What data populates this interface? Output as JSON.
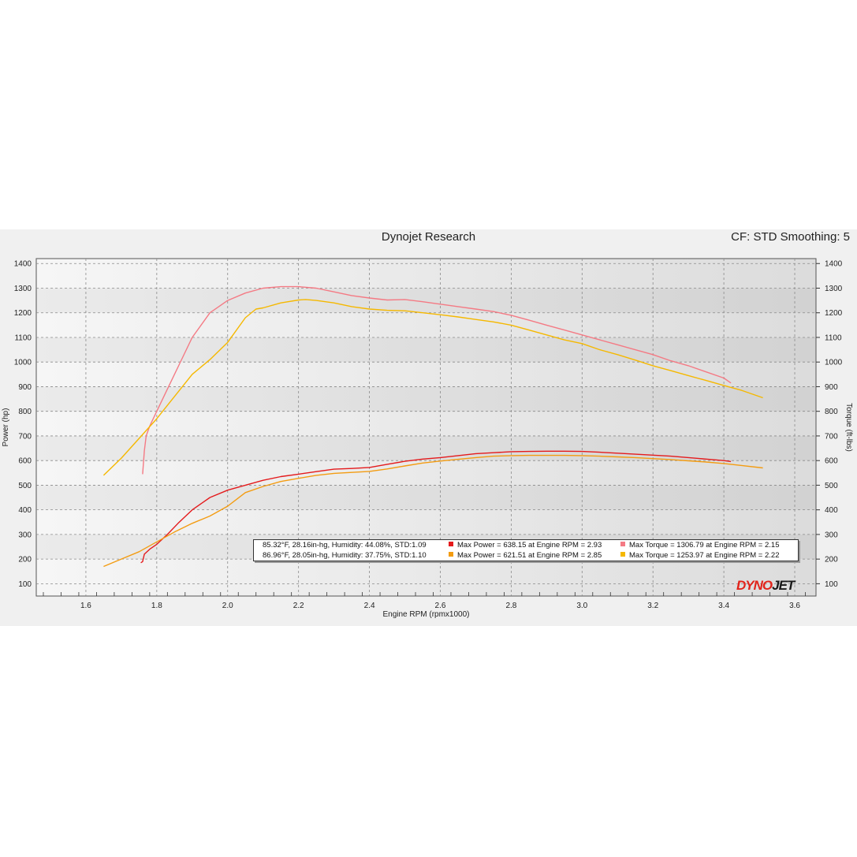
{
  "header": {
    "title": "Dynojet Research",
    "cf_label": "CF: STD Smoothing: 5"
  },
  "logo": {
    "part1": "DYNO",
    "part2": "JET"
  },
  "legend": {
    "rows": [
      {
        "conditions": "85.32°F, 28.16in-hg, Humidity: 44.08%, STD:1.09",
        "power_text": "Max Power = 638.15 at Engine RPM = 2.93",
        "torque_text": "Max Torque = 1306.79 at Engine RPM = 2.15",
        "power_color": "#e41a1c",
        "torque_color": "#f47a84"
      },
      {
        "conditions": "86.96°F, 28.05in-hg, Humidity: 37.75%, STD:1.10",
        "power_text": "Max Power = 621.51 at Engine RPM = 2.85",
        "torque_text": "Max Torque = 1253.97 at Engine RPM = 2.22",
        "power_color": "#f39c12",
        "torque_color": "#f5b800"
      }
    ]
  },
  "chart_data": {
    "type": "line",
    "title": "Dynojet Research",
    "xlabel": "Engine RPM (rpmx1000)",
    "ylabel": "Power (hp)",
    "y2label": "Torque (ft-lbs)",
    "xlim": [
      1.46,
      3.66
    ],
    "ylim": [
      50,
      1420
    ],
    "x_ticks": [
      1.6,
      1.8,
      2.0,
      2.2,
      2.4,
      2.6,
      2.8,
      3.0,
      3.2,
      3.4,
      3.6
    ],
    "y_ticks": [
      100,
      200,
      300,
      400,
      500,
      600,
      700,
      800,
      900,
      1000,
      1100,
      1200,
      1300,
      1400
    ],
    "grid": true,
    "series": [
      {
        "name": "Max Power = 638.15 at Engine RPM = 2.93",
        "color": "#e41a1c",
        "x": [
          1.755,
          1.76,
          1.765,
          1.78,
          1.8,
          1.83,
          1.86,
          1.9,
          1.95,
          2.0,
          2.05,
          2.1,
          2.15,
          2.2,
          2.25,
          2.3,
          2.35,
          2.4,
          2.45,
          2.5,
          2.55,
          2.6,
          2.65,
          2.7,
          2.75,
          2.8,
          2.85,
          2.9,
          2.93,
          2.95,
          3.0,
          3.05,
          3.1,
          3.15,
          3.2,
          3.25,
          3.3,
          3.35,
          3.4,
          3.42
        ],
        "y": [
          185,
          190,
          220,
          240,
          260,
          300,
          345,
          400,
          450,
          480,
          500,
          520,
          535,
          545,
          555,
          565,
          568,
          572,
          585,
          597,
          606,
          612,
          620,
          628,
          632,
          636,
          637,
          638,
          638,
          638,
          637,
          634,
          630,
          626,
          622,
          618,
          612,
          606,
          600,
          596
        ]
      },
      {
        "name": "Max Power = 621.51 at Engine RPM = 2.85",
        "color": "#f39c12",
        "x": [
          1.65,
          1.7,
          1.75,
          1.8,
          1.85,
          1.9,
          1.95,
          2.0,
          2.05,
          2.1,
          2.15,
          2.2,
          2.25,
          2.3,
          2.35,
          2.4,
          2.45,
          2.5,
          2.55,
          2.6,
          2.65,
          2.7,
          2.75,
          2.8,
          2.85,
          2.9,
          2.95,
          3.0,
          3.05,
          3.1,
          3.15,
          3.2,
          3.25,
          3.3,
          3.35,
          3.4,
          3.45,
          3.51
        ],
        "y": [
          170,
          200,
          230,
          270,
          310,
          345,
          375,
          415,
          470,
          495,
          515,
          528,
          540,
          548,
          552,
          556,
          566,
          578,
          590,
          598,
          605,
          612,
          618,
          620,
          621,
          621,
          621,
          620,
          618,
          615,
          612,
          608,
          604,
          599,
          594,
          588,
          580,
          570
        ]
      },
      {
        "name": "Max Torque = 1306.79 at Engine RPM = 2.15",
        "color": "#f47a84",
        "x": [
          1.76,
          1.765,
          1.77,
          1.78,
          1.8,
          1.83,
          1.86,
          1.9,
          1.95,
          2.0,
          2.05,
          2.1,
          2.15,
          2.2,
          2.25,
          2.3,
          2.35,
          2.4,
          2.45,
          2.5,
          2.55,
          2.6,
          2.65,
          2.7,
          2.75,
          2.8,
          2.85,
          2.9,
          2.95,
          3.0,
          3.05,
          3.1,
          3.15,
          3.2,
          3.25,
          3.3,
          3.35,
          3.4,
          3.42
        ],
        "y": [
          545,
          640,
          700,
          740,
          800,
          890,
          980,
          1100,
          1200,
          1250,
          1280,
          1300,
          1306,
          1306,
          1300,
          1285,
          1270,
          1260,
          1252,
          1254,
          1245,
          1235,
          1225,
          1215,
          1205,
          1190,
          1170,
          1150,
          1130,
          1110,
          1090,
          1070,
          1050,
          1030,
          1005,
          985,
          960,
          935,
          915
        ]
      },
      {
        "name": "Max Torque = 1253.97 at Engine RPM = 2.22",
        "color": "#f5b800",
        "x": [
          1.65,
          1.7,
          1.75,
          1.8,
          1.85,
          1.9,
          1.95,
          2.0,
          2.05,
          2.08,
          2.1,
          2.15,
          2.2,
          2.22,
          2.25,
          2.3,
          2.35,
          2.4,
          2.45,
          2.5,
          2.55,
          2.6,
          2.65,
          2.7,
          2.75,
          2.8,
          2.85,
          2.9,
          2.95,
          3.0,
          3.05,
          3.1,
          3.15,
          3.2,
          3.25,
          3.3,
          3.35,
          3.4,
          3.45,
          3.51
        ],
        "y": [
          540,
          610,
          690,
          770,
          860,
          950,
          1010,
          1080,
          1180,
          1215,
          1220,
          1240,
          1252,
          1254,
          1250,
          1240,
          1225,
          1215,
          1210,
          1208,
          1200,
          1192,
          1183,
          1173,
          1163,
          1150,
          1130,
          1110,
          1090,
          1075,
          1050,
          1030,
          1008,
          985,
          965,
          945,
          925,
          905,
          885,
          855
        ]
      }
    ]
  }
}
